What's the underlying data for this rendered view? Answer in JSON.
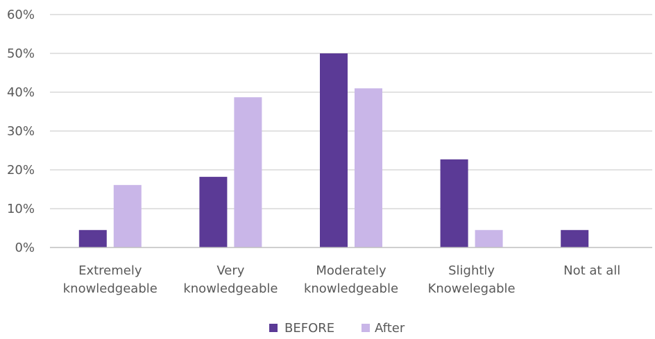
{
  "chart_data": {
    "type": "bar",
    "categories": [
      [
        "Extremely",
        "knowledgeable"
      ],
      [
        "Very",
        "knowledgeable"
      ],
      [
        "Moderately",
        "knowledgeable"
      ],
      [
        "Slightly",
        "Knowelegable"
      ],
      [
        "Not at all"
      ]
    ],
    "series": [
      {
        "name": "BEFORE",
        "color": "#5b3a96",
        "values": [
          4.5,
          18.2,
          50,
          22.7,
          4.5
        ]
      },
      {
        "name": "After",
        "color": "#c9b6e8",
        "values": [
          16.1,
          38.7,
          41,
          4.5,
          0
        ]
      }
    ],
    "yticks": [
      "0%",
      "10%",
      "20%",
      "30%",
      "40%",
      "50%",
      "60%"
    ],
    "ylim": [
      0,
      60
    ],
    "ystep": 10,
    "grid": true,
    "legend_position": "bottom"
  }
}
